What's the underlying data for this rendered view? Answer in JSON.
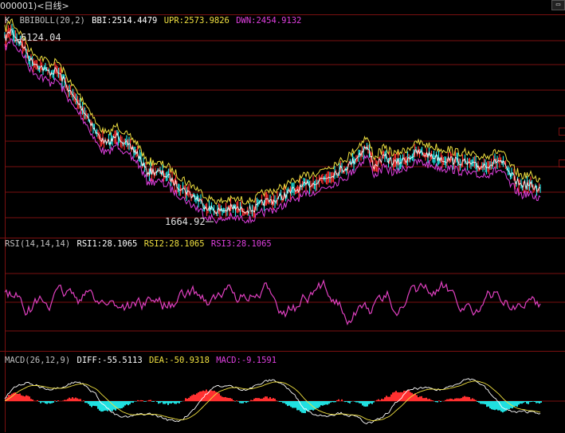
{
  "window": {
    "title": "000001)<日线>"
  },
  "kline_pane": {
    "indicator": "BBIBOLL(20,2)",
    "prefix": "K",
    "bbi": "BBI:2514.4479",
    "upr": "UPR:2573.9826",
    "dwn": "DWN:2454.9132",
    "high_label": "6124.04",
    "low_label": "1664.92"
  },
  "rsi_pane": {
    "indicator": "RSI(14,14,14)",
    "rsi1": "RSI1:28.1065",
    "rsi2": "RSI2:28.1065",
    "rsi3": "RSI3:28.1065"
  },
  "macd_pane": {
    "indicator": "MACD(26,12,9)",
    "diff": "DIFF:-55.5113",
    "dea": "DEA:-50.9318",
    "macd": "MACD:-9.1591"
  },
  "colors": {
    "grid": "#7a1010",
    "bbi": "#ffffff",
    "upr": "#f0e040",
    "dwn": "#e040e0",
    "rsi": "#e040c0",
    "macd_pos": "#ff3030",
    "macd_neg": "#20e0e0",
    "candle_up": "#ff3030",
    "candle_down": "#20e0e0"
  },
  "chart_data": [
    {
      "type": "line",
      "series": [
        {
          "name": "BBI",
          "last": 2514.4479
        },
        {
          "name": "UPR",
          "last": 2573.9826
        },
        {
          "name": "DWN",
          "last": 2454.9132
        }
      ],
      "annotations": [
        "6124.04",
        "1664.92"
      ]
    },
    {
      "type": "line",
      "series": [
        {
          "name": "RSI1",
          "last": 28.1065
        },
        {
          "name": "RSI2",
          "last": 28.1065
        },
        {
          "name": "RSI3",
          "last": 28.1065
        }
      ]
    },
    {
      "type": "bar",
      "series": [
        {
          "name": "DIFF",
          "last": -55.5113
        },
        {
          "name": "DEA",
          "last": -50.9318
        },
        {
          "name": "MACD",
          "last": -9.1591
        }
      ]
    }
  ]
}
